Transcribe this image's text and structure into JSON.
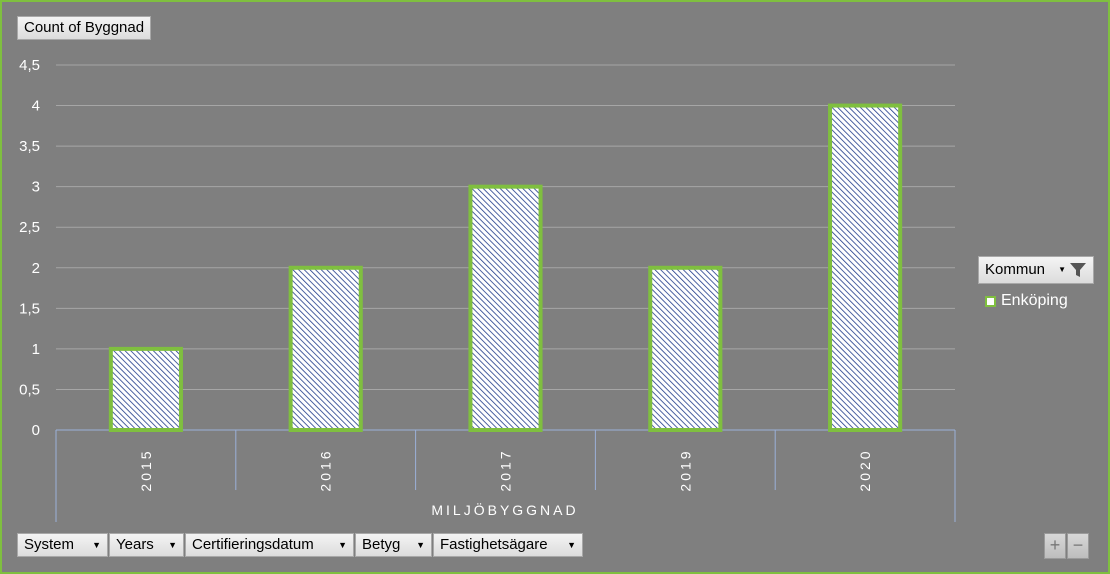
{
  "chart_data": {
    "type": "bar",
    "categories": [
      "2015",
      "2016",
      "2017",
      "2019",
      "2020"
    ],
    "series": [
      {
        "name": "Enköping",
        "values": [
          1,
          2,
          3,
          2,
          4
        ]
      }
    ],
    "ylim": [
      0,
      4.5
    ],
    "yticks": [
      "0",
      "0,5",
      "1",
      "1,5",
      "2",
      "2,5",
      "3",
      "3,5",
      "4",
      "4,5"
    ],
    "ytick_values": [
      0,
      0.5,
      1,
      1.5,
      2,
      2.5,
      3,
      3.5,
      4,
      4.5
    ],
    "group_label": "MILJÖBYGGNAD",
    "grid": true,
    "legend_position": "right",
    "bar_fill": "#1f3a8a",
    "bar_border": "#7fbf3f"
  },
  "pivot": {
    "value_field": "Count of Byggnad",
    "legend_field": "Kommun",
    "legend_item": "Enköping",
    "axis_fields": [
      {
        "label": "System"
      },
      {
        "label": "Years"
      },
      {
        "label": "Certifieringsdatum"
      },
      {
        "label": "Betyg"
      },
      {
        "label": "Fastighetsägare"
      }
    ],
    "zoom_in": "+",
    "zoom_out": "−"
  }
}
